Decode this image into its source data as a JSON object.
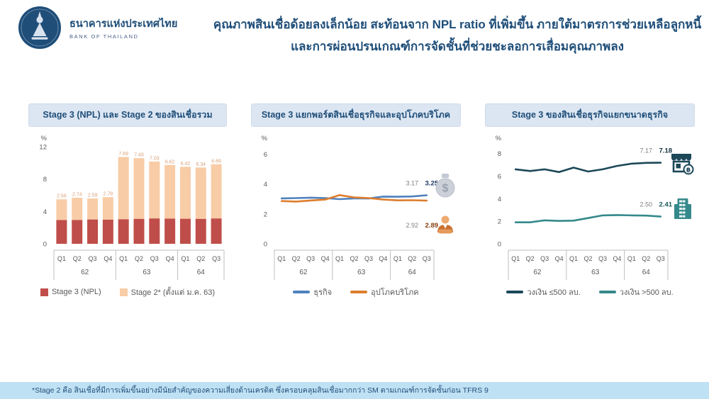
{
  "logo": {
    "name_th": "ธนาคารแห่งประเทศไทย",
    "name_en": "BANK OF THAILAND"
  },
  "title": {
    "line1": "คุณภาพสินเชื่อด้อยลงเล็กน้อย สะท้อนจาก NPL ratio ที่เพิ่มขึ้น ภายใต้มาตรการช่วยเหลือลูกหนี้",
    "line2": "และการผ่อนปรนเกณฑ์การจัดชั้นที่ช่วยชะลอการเสื่อมคุณภาพลง"
  },
  "footnote": "*Stage 2 คือ สินเชื่อที่มีการเพิ่มขึ้นอย่างมีนัยสำคัญของความเสี่ยงด้านเครดิต ซึ่งครอบคลุมสินเชื่อมากกว่า SM ตามเกณฑ์การจัดชั้นก่อน TFRS 9",
  "colors": {
    "brand_navy": "#1f4e79",
    "header_pill_bg": "#dce6f2",
    "footer_bg": "#bfe1f4",
    "axis_gray": "#595959",
    "grid_gray": "#bfbfbf"
  },
  "panels": [
    {
      "header": "Stage 3 (NPL) และ Stage 2 ของสินเชื่อรวม"
    },
    {
      "header": "Stage 3 แยกพอร์ตสินเชื่อธุรกิจและอุปโภคบริโภค"
    },
    {
      "header": "Stage 3 ของสินเชื่อธุรกิจแยกขนาดธุรกิจ"
    }
  ],
  "chart_data": [
    {
      "type": "bar",
      "stacked": true,
      "title": "Stage 3 (NPL) และ Stage 2 ของสินเชื่อรวม",
      "ylabel": "%",
      "yticks": [
        0,
        4,
        8,
        12
      ],
      "ylim": [
        0,
        12
      ],
      "categories": [
        "Q1",
        "Q2",
        "Q3",
        "Q4",
        "Q1",
        "Q2",
        "Q3",
        "Q4",
        "Q1",
        "Q2",
        "Q3"
      ],
      "year_groups": [
        {
          "label": "62",
          "count": 4
        },
        {
          "label": "63",
          "count": 4
        },
        {
          "label": "64",
          "count": 3
        }
      ],
      "series": [
        {
          "name": "Stage 3 (NPL)",
          "color": "#bf4e4a",
          "label_color": "#595959",
          "values": [
            2.94,
            2.95,
            3.01,
            2.98,
            3.04,
            3.09,
            3.14,
            3.12,
            3.1,
            3.09,
            3.14
          ]
        },
        {
          "name": "Stage 2* (ตั้งแต่ ม.ค. 63)",
          "color": "#f8cca6",
          "label_color": "#d9a079",
          "values": [
            2.56,
            2.74,
            2.59,
            2.78,
            7.69,
            7.49,
            7.03,
            6.62,
            6.42,
            6.34,
            6.69
          ]
        }
      ]
    },
    {
      "type": "line",
      "title": "Stage 3 แยกพอร์ตสินเชื่อธุรกิจและอุปโภคบริโภค",
      "ylabel": "%",
      "yticks": [
        0,
        2,
        4,
        6
      ],
      "ylim": [
        0,
        6.5
      ],
      "categories": [
        "Q1",
        "Q2",
        "Q3",
        "Q4",
        "Q1",
        "Q2",
        "Q3",
        "Q4",
        "Q1",
        "Q2",
        "Q3"
      ],
      "year_groups": [
        {
          "label": "62",
          "count": 4
        },
        {
          "label": "63",
          "count": 4
        },
        {
          "label": "64",
          "count": 3
        }
      ],
      "series": [
        {
          "name": "ธุรกิจ",
          "color": "#4f81bd",
          "dark": "#1f3864",
          "icon": "money-bag",
          "end_label_pos": "above",
          "end_labels": [
            "3.17",
            "3.25"
          ],
          "values": [
            3.04,
            3.06,
            3.09,
            3.06,
            2.99,
            3.04,
            3.03,
            3.16,
            3.15,
            3.17,
            3.25
          ]
        },
        {
          "name": "อุปโภคบริโภค",
          "color": "#dd7e2e",
          "dark": "#843c0c",
          "icon": "businessman",
          "end_label_pos": "below",
          "end_labels": [
            "2.92",
            "2.89"
          ],
          "values": [
            2.86,
            2.83,
            2.9,
            2.96,
            3.26,
            3.11,
            3.06,
            2.96,
            2.91,
            2.92,
            2.89
          ]
        }
      ]
    },
    {
      "type": "line",
      "title": "Stage 3 ของสินเชื่อธุรกิจแยกขนาดธุรกิจ",
      "ylabel": "%",
      "yticks": [
        0,
        2,
        4,
        6,
        8
      ],
      "ylim": [
        0,
        8.6
      ],
      "categories": [
        "Q1",
        "Q2",
        "Q3",
        "Q4",
        "Q1",
        "Q2",
        "Q3",
        "Q4",
        "Q1",
        "Q2",
        "Q3"
      ],
      "year_groups": [
        {
          "label": "62",
          "count": 4
        },
        {
          "label": "63",
          "count": 4
        },
        {
          "label": "64",
          "count": 3
        }
      ],
      "series": [
        {
          "name": "วงเงิน ≤500 ลบ.",
          "color": "#1c4859",
          "dark": "#12303f",
          "icon": "shop",
          "end_label_pos": "above",
          "end_labels": [
            "7.17",
            "7.18"
          ],
          "values": [
            6.6,
            6.45,
            6.6,
            6.35,
            6.75,
            6.4,
            6.6,
            6.9,
            7.1,
            7.17,
            7.18
          ]
        },
        {
          "name": "วงเงิน >500 ลบ.",
          "color": "#35898b",
          "dark": "#1c5a5c",
          "icon": "building",
          "end_label_pos": "above",
          "end_labels": [
            "2.50",
            "2.41"
          ],
          "values": [
            1.9,
            1.9,
            2.08,
            2.03,
            2.05,
            2.28,
            2.52,
            2.55,
            2.52,
            2.5,
            2.41
          ]
        }
      ]
    }
  ]
}
